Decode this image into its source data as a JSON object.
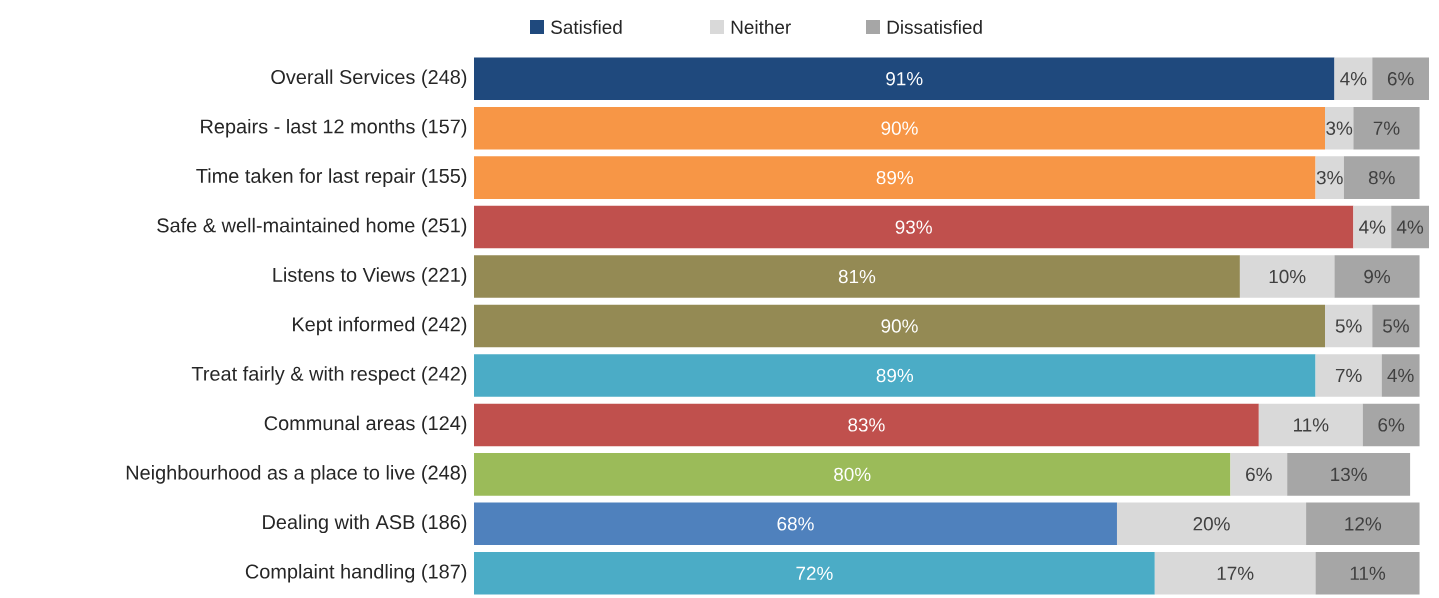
{
  "chart_data": {
    "type": "bar",
    "orientation": "horizontal",
    "stacked": true,
    "legend": "top",
    "tick_labels": "y",
    "xlim": [
      0,
      101
    ],
    "categories": [
      "Overall Services (248)",
      "Repairs - last 12 months (157)",
      "Time taken for last repair (155)",
      "Safe & well-maintained home (251)",
      "Listens to Views (221)",
      "Kept informed (242)",
      "Treat fairly & with respect (242)",
      "Communal areas (124)",
      "Neighbourhood as a place to live (248)",
      "Dealing with ASB (186)",
      "Complaint handling (187)"
    ],
    "series": [
      {
        "name": "Satisfied",
        "color": "#1f497d",
        "colors": [
          "#1f497d",
          "#f79646",
          "#f79646",
          "#c0504d",
          "#948a54",
          "#948a54",
          "#4bacc6",
          "#c0504d",
          "#9bbb59",
          "#4f81bd",
          "#4bacc6"
        ],
        "values": [
          91,
          90,
          89,
          93,
          81,
          90,
          89,
          83,
          80,
          68,
          72
        ],
        "value_labels": [
          "91%",
          "90%",
          "89%",
          "93%",
          "81%",
          "90%",
          "89%",
          "83%",
          "80%",
          "68%",
          "72%"
        ]
      },
      {
        "name": "Neither",
        "color": "#d9d9d9",
        "values": [
          4,
          3,
          3,
          4,
          10,
          5,
          7,
          11,
          6,
          20,
          17
        ],
        "value_labels": [
          "4%",
          "3%",
          "3%",
          "4%",
          "10%",
          "5%",
          "7%",
          "11%",
          "6%",
          "20%",
          "17%"
        ]
      },
      {
        "name": "Dissatisfied",
        "color": "#a6a6a6",
        "values": [
          6,
          7,
          8,
          4,
          9,
          5,
          4,
          6,
          13,
          12,
          11
        ],
        "value_labels": [
          "6%",
          "7%",
          "8%",
          "4%",
          "9%",
          "5%",
          "4%",
          "6%",
          "13%",
          "12%",
          "11%"
        ]
      }
    ]
  }
}
